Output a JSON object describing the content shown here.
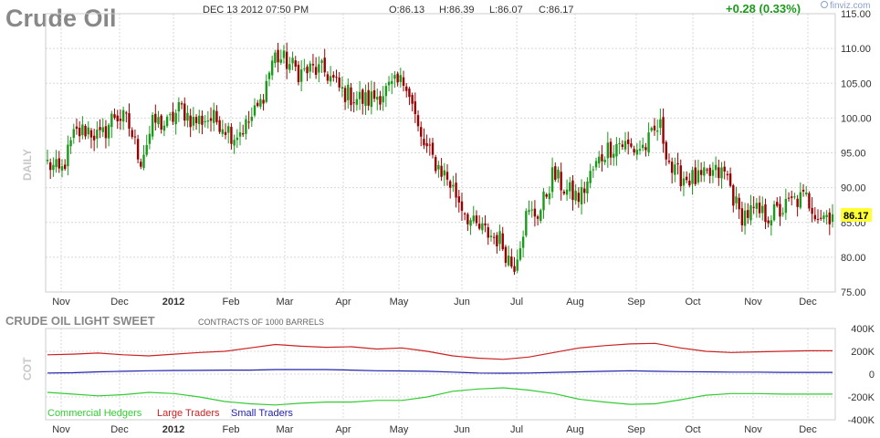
{
  "header": {
    "title": "Crude Oil",
    "datetime": "DEC 13 2012 07:50 PM",
    "open": "O:86.13",
    "high": "H:86.39",
    "low": "L:86.07",
    "close": "C:86.17",
    "change": "+0.28 (0.33%)",
    "brand": "finviz.com"
  },
  "colors": {
    "up": "#1a9a1a",
    "down": "#9a0000",
    "grid": "#d8d8d8",
    "commercial": "#33cc33",
    "large": "#cc2222",
    "small": "#2222aa",
    "price_tag": "#ffff33"
  },
  "chart_data": [
    {
      "type": "candlestick",
      "title": "Crude Oil",
      "side_label": "DAILY",
      "x_ticks": [
        "Nov",
        "Dec",
        "2012",
        "Feb",
        "Mar",
        "Apr",
        "May",
        "Jun",
        "Jul",
        "Aug",
        "Sep",
        "Oct",
        "Nov",
        "Dec"
      ],
      "y_ticks": [
        "75.00",
        "80.00",
        "85.00",
        "90.00",
        "95.00",
        "100.00",
        "105.00",
        "110.00",
        "115.00"
      ],
      "ylim": [
        75,
        115
      ],
      "last_price": "86.17",
      "close_series": [
        {
          "x": "Oct 27",
          "y": 93.5
        },
        {
          "x": "Nov 3",
          "y": 92.0
        },
        {
          "x": "Nov 10",
          "y": 97.5
        },
        {
          "x": "Nov 17",
          "y": 98.5
        },
        {
          "x": "Nov 24",
          "y": 97.0
        },
        {
          "x": "Dec 1",
          "y": 100.5
        },
        {
          "x": "Dec 8",
          "y": 99.5
        },
        {
          "x": "Dec 15",
          "y": 94.0
        },
        {
          "x": "Dec 22",
          "y": 99.5
        },
        {
          "x": "Dec 29",
          "y": 99.0
        },
        {
          "x": "Jan 5",
          "y": 101.5
        },
        {
          "x": "Jan 12",
          "y": 99.5
        },
        {
          "x": "Jan 19",
          "y": 100.0
        },
        {
          "x": "Jan 26",
          "y": 99.5
        },
        {
          "x": "Feb 2",
          "y": 97.5
        },
        {
          "x": "Feb 9",
          "y": 99.0
        },
        {
          "x": "Feb 16",
          "y": 102.0
        },
        {
          "x": "Feb 23",
          "y": 109.0
        },
        {
          "x": "Mar 1",
          "y": 108.0
        },
        {
          "x": "Mar 8",
          "y": 106.5
        },
        {
          "x": "Mar 15",
          "y": 107.0
        },
        {
          "x": "Mar 22",
          "y": 106.5
        },
        {
          "x": "Mar 29",
          "y": 104.0
        },
        {
          "x": "Apr 5",
          "y": 103.0
        },
        {
          "x": "Apr 12",
          "y": 102.5
        },
        {
          "x": "Apr 19",
          "y": 103.5
        },
        {
          "x": "Apr 26",
          "y": 104.5
        },
        {
          "x": "May 3",
          "y": 105.5
        },
        {
          "x": "May 10",
          "y": 97.0
        },
        {
          "x": "May 17",
          "y": 94.0
        },
        {
          "x": "May 24",
          "y": 91.5
        },
        {
          "x": "May 31",
          "y": 88.0
        },
        {
          "x": "Jun 7",
          "y": 84.5
        },
        {
          "x": "Jun 14",
          "y": 83.5
        },
        {
          "x": "Jun 21",
          "y": 82.5
        },
        {
          "x": "Jun 28",
          "y": 78.5
        },
        {
          "x": "Jul 5",
          "y": 86.0
        },
        {
          "x": "Jul 12",
          "y": 86.5
        },
        {
          "x": "Jul 19",
          "y": 92.0
        },
        {
          "x": "Jul 26",
          "y": 89.5
        },
        {
          "x": "Aug 2",
          "y": 88.5
        },
        {
          "x": "Aug 9",
          "y": 92.5
        },
        {
          "x": "Aug 16",
          "y": 95.5
        },
        {
          "x": "Aug 23",
          "y": 96.5
        },
        {
          "x": "Aug 30",
          "y": 95.5
        },
        {
          "x": "Sep 6",
          "y": 96.0
        },
        {
          "x": "Sep 13",
          "y": 99.0
        },
        {
          "x": "Sep 20",
          "y": 92.0
        },
        {
          "x": "Sep 27",
          "y": 91.5
        },
        {
          "x": "Oct 4",
          "y": 91.0
        },
        {
          "x": "Oct 11",
          "y": 92.0
        },
        {
          "x": "Oct 18",
          "y": 92.0
        },
        {
          "x": "Oct 25",
          "y": 86.0
        },
        {
          "x": "Nov 1",
          "y": 86.5
        },
        {
          "x": "Nov 8",
          "y": 86.0
        },
        {
          "x": "Nov 15",
          "y": 86.5
        },
        {
          "x": "Nov 22",
          "y": 88.0
        },
        {
          "x": "Nov 29",
          "y": 88.5
        },
        {
          "x": "Dec 6",
          "y": 86.0
        },
        {
          "x": "Dec 13",
          "y": 86.17
        }
      ]
    },
    {
      "type": "line",
      "title": "CRUDE OIL LIGHT SWEET",
      "subtitle": "CONTRACTS OF 1000 BARRELS",
      "side_label": "COT",
      "x_ticks": [
        "Nov",
        "Dec",
        "2012",
        "Feb",
        "Mar",
        "Apr",
        "May",
        "Jun",
        "Jul",
        "Aug",
        "Sep",
        "Oct",
        "Nov",
        "Dec"
      ],
      "y_ticks": [
        "400K",
        "200K",
        "0",
        "-200K",
        "-400K"
      ],
      "ylim": [
        -400000,
        400000
      ],
      "legend": [
        "Commercial Hedgers",
        "Large Traders",
        "Small Traders"
      ],
      "series": [
        {
          "name": "Large Traders",
          "values": [
            170000,
            175000,
            185000,
            170000,
            160000,
            175000,
            190000,
            200000,
            230000,
            260000,
            245000,
            235000,
            240000,
            220000,
            230000,
            200000,
            160000,
            140000,
            130000,
            150000,
            190000,
            230000,
            250000,
            265000,
            270000,
            230000,
            200000,
            190000,
            195000,
            200000,
            205000,
            205000
          ]
        },
        {
          "name": "Small Traders",
          "values": [
            10000,
            12000,
            20000,
            25000,
            30000,
            32000,
            33000,
            35000,
            35000,
            40000,
            40000,
            40000,
            35000,
            30000,
            28000,
            25000,
            18000,
            10000,
            8000,
            10000,
            15000,
            20000,
            25000,
            30000,
            25000,
            22000,
            20000,
            18000,
            18000,
            15000,
            15000,
            15000
          ]
        },
        {
          "name": "Commercial Hedgers",
          "values": [
            -160000,
            -175000,
            -190000,
            -180000,
            -160000,
            -170000,
            -200000,
            -240000,
            -260000,
            -270000,
            -255000,
            -245000,
            -245000,
            -230000,
            -230000,
            -200000,
            -150000,
            -130000,
            -120000,
            -140000,
            -170000,
            -220000,
            -245000,
            -265000,
            -260000,
            -225000,
            -185000,
            -170000,
            -170000,
            -175000,
            -175000,
            -175000
          ]
        }
      ]
    }
  ]
}
